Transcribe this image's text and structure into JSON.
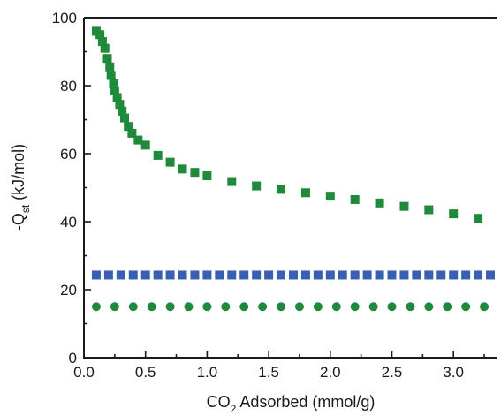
{
  "chart_data": {
    "type": "scatter",
    "xlabel": {
      "pre": "CO",
      "sub": "2",
      "post": " Adsorbed (mmol/g)"
    },
    "ylabel": {
      "pre": "-Q",
      "sub": "st",
      "post": " (kJ/mol)"
    },
    "xlim": [
      0,
      3.35
    ],
    "ylim": [
      0,
      100
    ],
    "x_ticks": [
      0.0,
      0.5,
      1.0,
      1.5,
      2.0,
      2.5,
      3.0
    ],
    "x_tick_labels": [
      "0.0",
      "0.5",
      "1.0",
      "1.5",
      "2.0",
      "2.5",
      "3.0"
    ],
    "y_ticks": [
      0,
      20,
      40,
      60,
      80,
      100
    ],
    "y_tick_labels": [
      "0",
      "20",
      "40",
      "60",
      "80",
      "100"
    ],
    "grid": false,
    "legend": "none",
    "series": [
      {
        "marker": "square",
        "color": "#1f8a3b",
        "points": [
          [
            0.1,
            96.0
          ],
          [
            0.13,
            95.0
          ],
          [
            0.15,
            93.0
          ],
          [
            0.17,
            91.0
          ],
          [
            0.19,
            88.0
          ],
          [
            0.21,
            85.5
          ],
          [
            0.22,
            83.0
          ],
          [
            0.24,
            80.5
          ],
          [
            0.25,
            78.5
          ],
          [
            0.27,
            76.5
          ],
          [
            0.29,
            74.5
          ],
          [
            0.31,
            72.5
          ],
          [
            0.33,
            70.5
          ],
          [
            0.36,
            68.0
          ],
          [
            0.39,
            66.0
          ],
          [
            0.44,
            64.0
          ],
          [
            0.5,
            62.5
          ],
          [
            0.6,
            59.5
          ],
          [
            0.7,
            57.5
          ],
          [
            0.8,
            55.5
          ],
          [
            0.9,
            54.5
          ],
          [
            1.0,
            53.5
          ],
          [
            1.2,
            51.8
          ],
          [
            1.4,
            50.5
          ],
          [
            1.6,
            49.5
          ],
          [
            1.8,
            48.5
          ],
          [
            2.0,
            47.5
          ],
          [
            2.2,
            46.5
          ],
          [
            2.4,
            45.5
          ],
          [
            2.6,
            44.5
          ],
          [
            2.8,
            43.5
          ],
          [
            3.0,
            42.3
          ],
          [
            3.2,
            41.0
          ]
        ]
      },
      {
        "marker": "square",
        "color": "#3a5fb0",
        "points": [
          [
            0.1,
            24.3
          ],
          [
            0.2,
            24.3
          ],
          [
            0.3,
            24.3
          ],
          [
            0.4,
            24.3
          ],
          [
            0.5,
            24.3
          ],
          [
            0.6,
            24.3
          ],
          [
            0.7,
            24.3
          ],
          [
            0.8,
            24.3
          ],
          [
            0.9,
            24.3
          ],
          [
            1.0,
            24.3
          ],
          [
            1.1,
            24.3
          ],
          [
            1.2,
            24.3
          ],
          [
            1.3,
            24.3
          ],
          [
            1.4,
            24.3
          ],
          [
            1.5,
            24.3
          ],
          [
            1.6,
            24.3
          ],
          [
            1.7,
            24.3
          ],
          [
            1.8,
            24.3
          ],
          [
            1.9,
            24.3
          ],
          [
            2.0,
            24.3
          ],
          [
            2.1,
            24.3
          ],
          [
            2.2,
            24.3
          ],
          [
            2.3,
            24.3
          ],
          [
            2.4,
            24.3
          ],
          [
            2.5,
            24.3
          ],
          [
            2.6,
            24.3
          ],
          [
            2.7,
            24.3
          ],
          [
            2.8,
            24.3
          ],
          [
            2.9,
            24.3
          ],
          [
            3.0,
            24.3
          ],
          [
            3.1,
            24.3
          ],
          [
            3.2,
            24.3
          ],
          [
            3.3,
            24.3
          ]
        ]
      },
      {
        "marker": "circle",
        "color": "#1f8a3b",
        "points": [
          [
            0.1,
            15.0
          ],
          [
            0.25,
            15.0
          ],
          [
            0.4,
            15.0
          ],
          [
            0.55,
            15.0
          ],
          [
            0.7,
            15.0
          ],
          [
            0.85,
            15.0
          ],
          [
            1.0,
            15.0
          ],
          [
            1.15,
            15.0
          ],
          [
            1.3,
            15.0
          ],
          [
            1.45,
            15.0
          ],
          [
            1.6,
            15.0
          ],
          [
            1.75,
            15.0
          ],
          [
            1.9,
            15.0
          ],
          [
            2.05,
            15.0
          ],
          [
            2.2,
            15.0
          ],
          [
            2.35,
            15.0
          ],
          [
            2.5,
            15.0
          ],
          [
            2.65,
            15.0
          ],
          [
            2.8,
            15.0
          ],
          [
            2.95,
            15.0
          ],
          [
            3.1,
            15.0
          ],
          [
            3.25,
            15.0
          ]
        ]
      }
    ]
  }
}
